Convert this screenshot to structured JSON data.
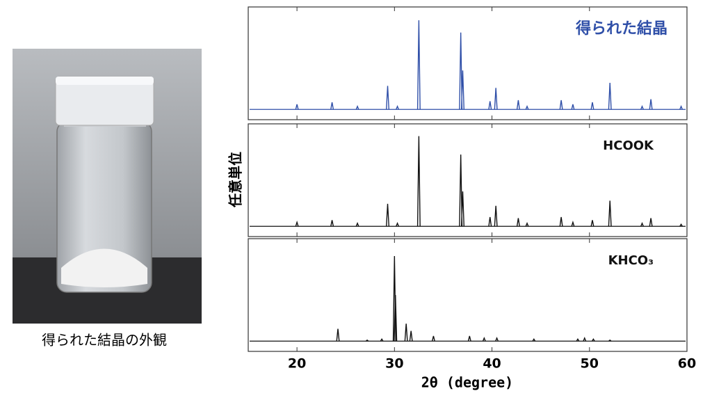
{
  "photo_caption": "得られた結晶の外観",
  "chart_data": {
    "type": "spectrum",
    "xlabel": "2θ (degree)",
    "ylabel": "任意単位",
    "xlim": [
      15,
      60
    ],
    "xticks": [
      20,
      30,
      40,
      50,
      60
    ],
    "ylim": [
      -10,
      100
    ],
    "series": [
      {
        "name": "得られた結晶",
        "color": "#2f4fa8",
        "x": [
          20.0,
          23.6,
          26.2,
          29.3,
          30.3,
          32.5,
          36.8,
          37.0,
          39.8,
          40.4,
          42.7,
          43.6,
          47.1,
          48.3,
          50.3,
          52.1,
          55.4,
          56.3,
          59.4
        ],
        "values": [
          5,
          7,
          3,
          23,
          3,
          87,
          75,
          38,
          8,
          21,
          9,
          3,
          9,
          5,
          7,
          26,
          3,
          10,
          3
        ]
      },
      {
        "name": "HCOOK",
        "color": "#111111",
        "x": [
          20.0,
          23.6,
          26.2,
          29.3,
          30.3,
          32.5,
          36.8,
          37.0,
          39.8,
          40.4,
          42.7,
          43.6,
          47.1,
          48.3,
          50.3,
          52.1,
          55.4,
          56.3,
          59.4
        ],
        "values": [
          4,
          6,
          3,
          22,
          3,
          88,
          70,
          34,
          9,
          20,
          8,
          3,
          9,
          4,
          6,
          25,
          3,
          8,
          2
        ]
      },
      {
        "name": "KHCO₃",
        "color": "#111111",
        "x": [
          24.2,
          27.2,
          28.7,
          30.0,
          30.1,
          31.2,
          31.7,
          34.0,
          37.7,
          39.2,
          40.5,
          44.3,
          48.8,
          49.5,
          50.4,
          52.1
        ],
        "values": [
          12,
          1,
          2,
          83,
          45,
          17,
          10,
          5,
          5,
          3,
          3,
          2,
          2,
          3,
          2,
          1
        ]
      }
    ]
  }
}
